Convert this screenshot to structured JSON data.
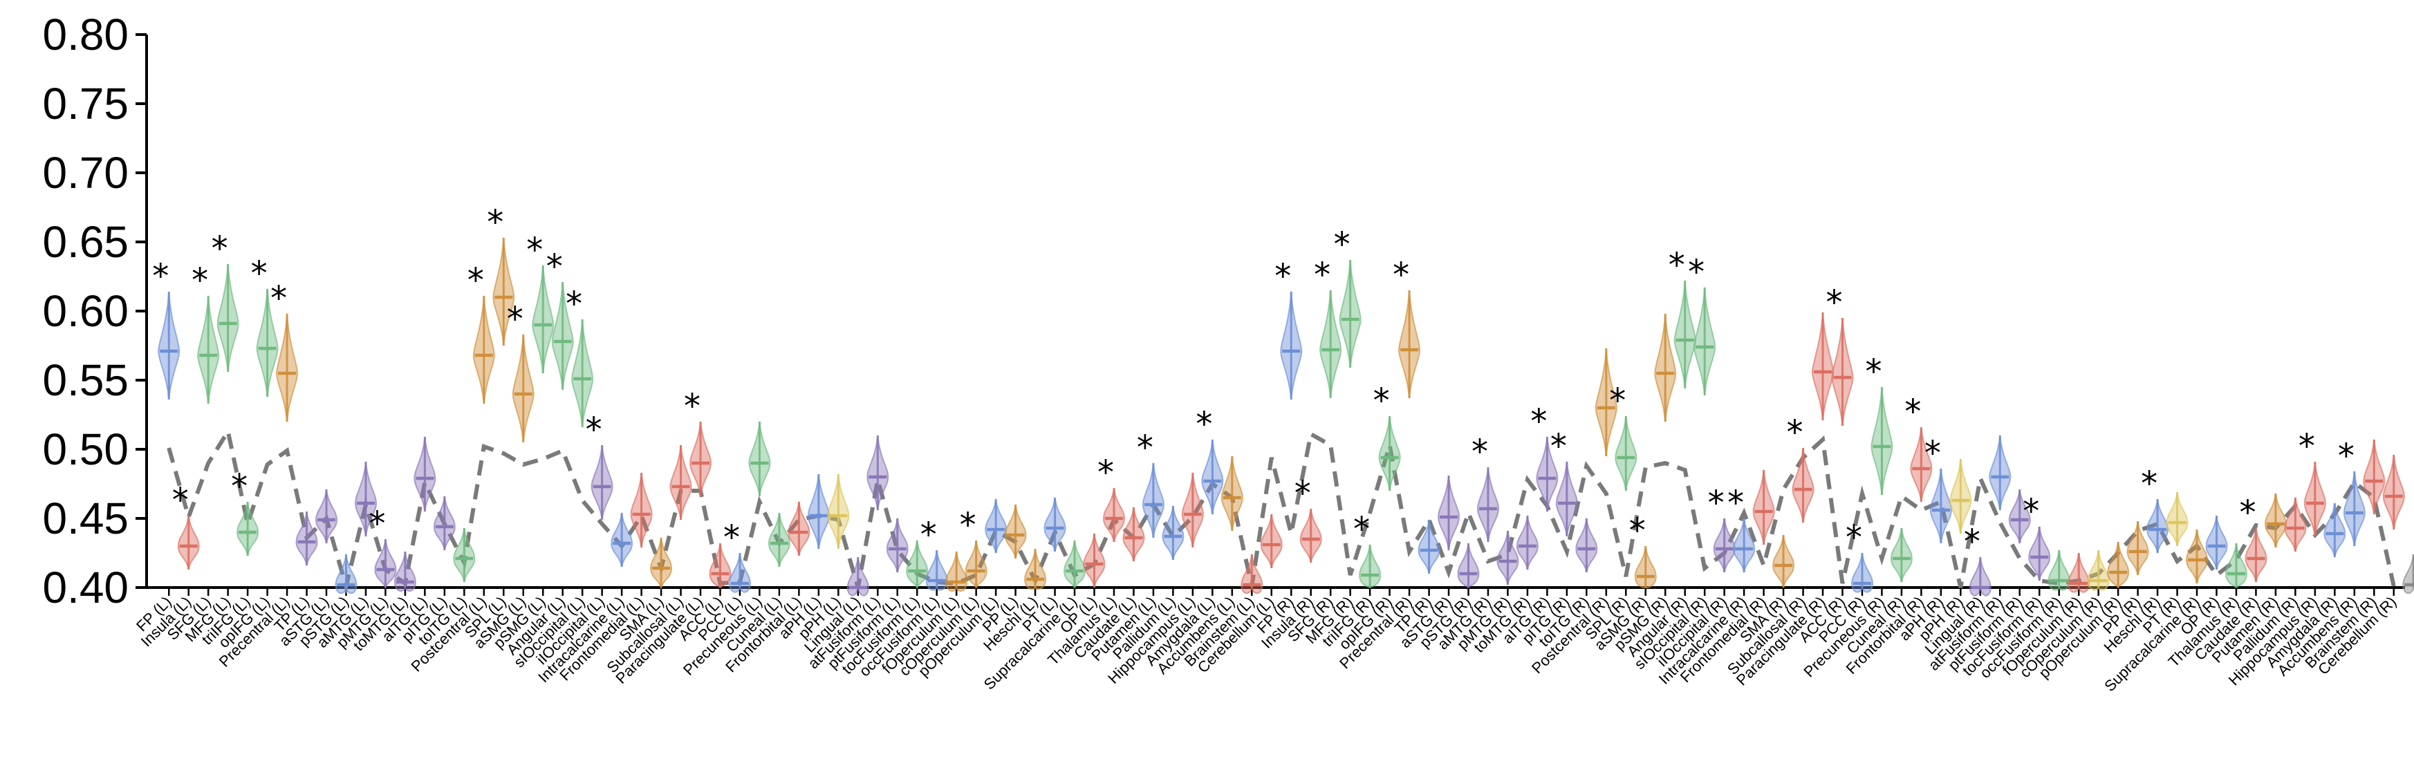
{
  "chart_data": {
    "type": "violin",
    "title": "",
    "xlabel": "",
    "ylabel": "",
    "ylim": [
      0.4,
      0.8
    ],
    "yticks": [
      "0.40",
      "0.45",
      "0.50",
      "0.55",
      "0.60",
      "0.65",
      "0.70",
      "0.75",
      "0.80"
    ],
    "grid": false,
    "legend": "none",
    "colors": {
      "blue": "#6c8fd6",
      "green": "#6fba80",
      "orange": "#cf8f3a",
      "red": "#dc6e62",
      "purple": "#8a77b8",
      "yellow": "#ddc65e",
      "dashed_line": "#7a7a7a"
    },
    "categories": [
      "FP (L)",
      "Insula (L)",
      "SFG (L)",
      "MFG (L)",
      "triIFG (L)",
      "opIFG (L)",
      "Precentral (L)",
      "TP (L)",
      "aSTG (L)",
      "pSTG (L)",
      "aMTG (L)",
      "pMTG (L)",
      "toMTG (L)",
      "aITG (L)",
      "pITG (L)",
      "toITG (L)",
      "Postcentral (L)",
      "SPL (L)",
      "aSMG (L)",
      "pSMG (L)",
      "Angular (L)",
      "sIOccipital (L)",
      "iIOccipital (L)",
      "Intracalcarine (L)",
      "Frontomedial (L)",
      "SMA (L)",
      "Subcallosal (L)",
      "Paracingulate (L)",
      "ACC (L)",
      "PCC (L)",
      "Precuneous (L)",
      "Cuneal (L)",
      "Frontorbital (L)",
      "aPH (L)",
      "pPH (L)",
      "Lingual (L)",
      "atFusiform (L)",
      "ptFusiform (L)",
      "tocFusiform (L)",
      "occFusiform (L)",
      "fOperculum (L)",
      "cOperculum (L)",
      "pOperculum (L)",
      "PP (L)",
      "Heschl (L)",
      "PT (L)",
      "Supracalcarine (L)",
      "OP (L)",
      "Thalamus (L)",
      "Caudate (L)",
      "Putamen (L)",
      "Pallidum (L)",
      "Hippocampus (L)",
      "Amygdala (L)",
      "Accumbens (L)",
      "Brainstem (L)",
      "Cerebellum (L)",
      "FP (R)",
      "Insula (R)",
      "SFG (R)",
      "MFG (R)",
      "triIFG (R)",
      "opIFG (R)",
      "Precentral (R)",
      "TP (R)",
      "aSTG (R)",
      "pSTG (R)",
      "aMTG (R)",
      "pMTG (R)",
      "toMTG (R)",
      "aITG (R)",
      "pITG (R)",
      "toITG (R)",
      "Postcentral (R)",
      "SPL (R)",
      "aSMG (R)",
      "pSMG (R)",
      "Angular (R)",
      "sIOccipital (R)",
      "iIOccipital (R)",
      "Intracalcarine (R)",
      "Frontomedial (R)",
      "SMA (R)",
      "Subcallosal (R)",
      "Paracingulate (R)",
      "ACC (R)",
      "PCC (R)",
      "Precuneous (R)",
      "Cuneal (R)",
      "Frontorbital (R)",
      "aPH (R)",
      "pPH (R)",
      "Lingual (R)",
      "atFusiform (R)",
      "ptFusiform (R)",
      "tocFusiform (R)",
      "occFusiform (R)",
      "fOperculum (R)",
      "cOperculum (R)",
      "pOperculum (R)",
      "PP (R)",
      "Heschl (R)",
      "PT (R)",
      "Supracalcarine (R)",
      "OP (R)",
      "Thalamus (R)",
      "Caudate (R)",
      "Putamen (R)",
      "Pallidum (R)",
      "Hippocampus (R)",
      "Amygdala (R)",
      "Accumbens (R)",
      "Brainstem (R)",
      "Cerebellum (R)"
    ],
    "violin_medians": [
      0.571,
      0.43,
      0.568,
      0.591,
      0.44,
      0.573,
      0.555,
      0.433,
      0.449,
      0.402,
      0.461,
      0.413,
      0.404,
      0.479,
      0.444,
      0.421,
      0.568,
      0.61,
      0.54,
      0.59,
      0.578,
      0.551,
      0.473,
      0.432,
      0.453,
      0.414,
      0.473,
      0.49,
      0.41,
      0.403,
      0.49,
      0.432,
      0.44,
      0.452,
      0.452,
      0.4,
      0.48,
      0.428,
      0.412,
      0.405,
      0.404,
      0.412,
      0.442,
      0.438,
      0.406,
      0.443,
      0.412,
      0.417,
      0.45,
      0.436,
      0.46,
      0.437,
      0.453,
      0.477,
      0.465,
      0.402,
      0.431,
      0.571,
      0.435,
      0.572,
      0.594,
      0.409,
      0.494,
      0.572,
      0.427,
      0.451,
      0.41,
      0.457,
      0.419,
      0.43,
      0.479,
      0.461,
      0.428,
      0.53,
      0.494,
      0.408,
      0.555,
      0.579,
      0.574,
      0.428,
      0.428,
      0.455,
      0.416,
      0.471,
      0.556,
      0.552,
      0.403,
      0.502,
      0.421,
      0.486,
      0.456,
      0.463,
      0.4,
      0.48,
      0.449,
      0.422,
      0.405,
      0.403,
      0.405,
      0.411,
      0.426,
      0.442,
      0.447,
      0.42,
      0.43,
      0.41,
      0.421,
      0.446,
      0.443,
      0.461,
      0.439,
      0.454,
      0.477,
      0.466,
      0.402
    ],
    "violin_colors": [
      "blue",
      "red",
      "green",
      "green",
      "green",
      "green",
      "orange",
      "purple",
      "purple",
      "blue",
      "purple",
      "purple",
      "purple",
      "purple",
      "purple",
      "green",
      "orange",
      "orange",
      "orange",
      "green",
      "green",
      "green",
      "purple",
      "blue",
      "red",
      "orange",
      "red",
      "red",
      "red",
      "blue",
      "green",
      "green",
      "red",
      "blue",
      "yellow",
      "purple",
      "purple",
      "purple",
      "green",
      "blue",
      "orange",
      "orange",
      "blue",
      "orange",
      "orange",
      "blue",
      "green",
      "red",
      "red",
      "red",
      "blue",
      "blue",
      "red",
      "blue",
      "orange",
      "red",
      "red",
      "blue",
      "red",
      "green",
      "green",
      "green",
      "green",
      "orange",
      "blue",
      "purple",
      "purple",
      "purple",
      "purple",
      "purple",
      "purple",
      "purple",
      "purple",
      "orange",
      "green",
      "orange",
      "orange",
      "green",
      "green",
      "purple",
      "blue",
      "red",
      "orange",
      "red",
      "red",
      "red",
      "blue",
      "green",
      "green",
      "red",
      "blue",
      "yellow",
      "purple",
      "blue",
      "purple",
      "purple",
      "green",
      "red",
      "yellow",
      "orange",
      "orange",
      "blue",
      "yellow",
      "orange",
      "blue",
      "green",
      "red",
      "orange",
      "red",
      "red",
      "blue",
      "blue",
      "red",
      "red"
    ],
    "significant": [
      true,
      true,
      true,
      true,
      true,
      true,
      true,
      false,
      false,
      false,
      false,
      true,
      false,
      false,
      false,
      false,
      true,
      true,
      true,
      true,
      true,
      true,
      true,
      false,
      false,
      false,
      false,
      true,
      false,
      true,
      false,
      false,
      false,
      false,
      false,
      false,
      false,
      false,
      false,
      true,
      false,
      true,
      false,
      false,
      false,
      false,
      false,
      false,
      true,
      false,
      true,
      false,
      false,
      true,
      false,
      false,
      false,
      true,
      true,
      true,
      true,
      true,
      true,
      true,
      false,
      false,
      false,
      true,
      false,
      false,
      true,
      true,
      false,
      false,
      true,
      true,
      false,
      true,
      true,
      true,
      true,
      false,
      false,
      true,
      false,
      true,
      true,
      true,
      false,
      true,
      true,
      false,
      true,
      false,
      false,
      true,
      false,
      false,
      false,
      false,
      false,
      true,
      false,
      false,
      false,
      false,
      true,
      false,
      false,
      true,
      false,
      true,
      false,
      false
    ],
    "baseline_series": {
      "name": "",
      "values": [
        0.501,
        0.451,
        0.49,
        0.513,
        0.446,
        0.489,
        0.499,
        0.436,
        0.45,
        0.401,
        0.46,
        0.413,
        0.403,
        0.476,
        0.446,
        0.418,
        0.502,
        0.497,
        0.489,
        0.493,
        0.499,
        0.463,
        0.446,
        0.43,
        0.452,
        0.414,
        0.47,
        0.47,
        0.403,
        0.404,
        0.462,
        0.432,
        0.449,
        0.452,
        0.449,
        0.4,
        0.478,
        0.427,
        0.41,
        0.404,
        0.403,
        0.409,
        0.441,
        0.433,
        0.405,
        0.44,
        0.409,
        0.417,
        0.449,
        0.436,
        0.46,
        0.437,
        0.451,
        0.475,
        0.465,
        0.401,
        0.494,
        0.439,
        0.511,
        0.503,
        0.409,
        0.454,
        0.503,
        0.426,
        0.449,
        0.411,
        0.454,
        0.419,
        0.424,
        0.478,
        0.459,
        0.426,
        0.488,
        0.468,
        0.408,
        0.487,
        0.49,
        0.485,
        0.414,
        0.425,
        0.454,
        0.416,
        0.471,
        0.494,
        0.507,
        0.403,
        0.468,
        0.421,
        0.466,
        0.456,
        0.462,
        0.4,
        0.479,
        0.447,
        0.421,
        0.405,
        0.403,
        0.405,
        0.41,
        0.425,
        0.441,
        0.446,
        0.419,
        0.43,
        0.409,
        0.42,
        0.445,
        0.443,
        0.459,
        0.438,
        0.453,
        0.476,
        0.465,
        0.401
      ]
    }
  }
}
